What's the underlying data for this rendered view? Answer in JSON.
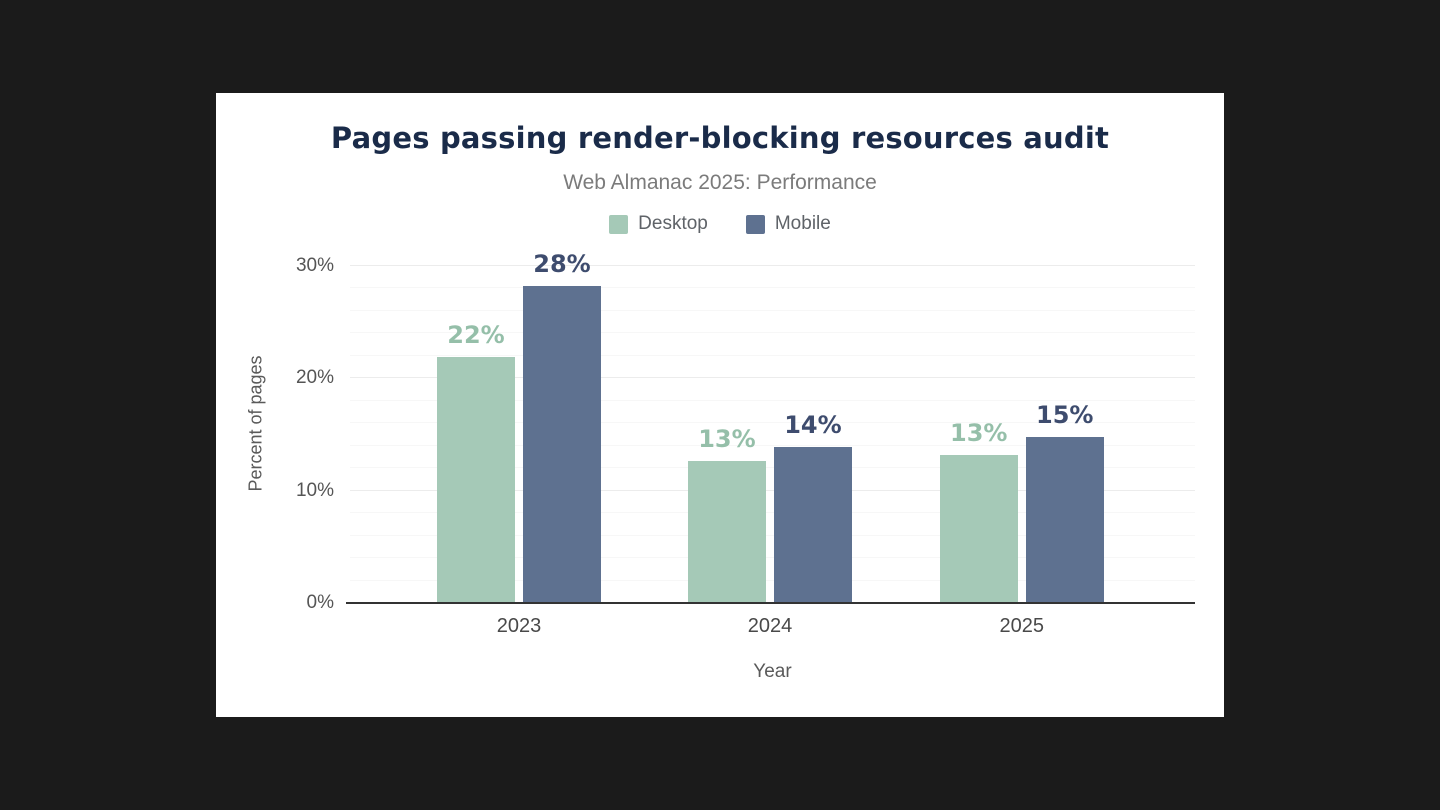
{
  "page": {
    "background": "#1b1b1b",
    "card_background": "#ffffff"
  },
  "chart_data": {
    "type": "bar",
    "title": "Pages passing render-blocking resources audit",
    "subtitle": "Web Almanac 2025: Performance",
    "xlabel": "Year",
    "ylabel": "Percent of pages",
    "categories": [
      "2023",
      "2024",
      "2025"
    ],
    "series": [
      {
        "name": "Desktop",
        "color": "#a5c9b7",
        "label_color": "#95bfa9",
        "values": [
          21.9,
          12.6,
          13.2
        ],
        "labels": [
          "22%",
          "13%",
          "13%"
        ]
      },
      {
        "name": "Mobile",
        "color": "#5e7190",
        "label_color": "#3e4c6e",
        "values": [
          28.2,
          13.9,
          14.8
        ],
        "labels": [
          "28%",
          "14%",
          "15%"
        ]
      }
    ],
    "ylim": [
      0,
      32
    ],
    "yticks": [
      0,
      10,
      20,
      30
    ],
    "ytick_labels": [
      "0%",
      "10%",
      "20%",
      "30%"
    ],
    "grid": true,
    "legend_position": "top-center",
    "axis_color": "#333333",
    "gridline_color": "#ececec",
    "title_color": "#1a2b49",
    "subtitle_color": "#7b7b7b"
  }
}
